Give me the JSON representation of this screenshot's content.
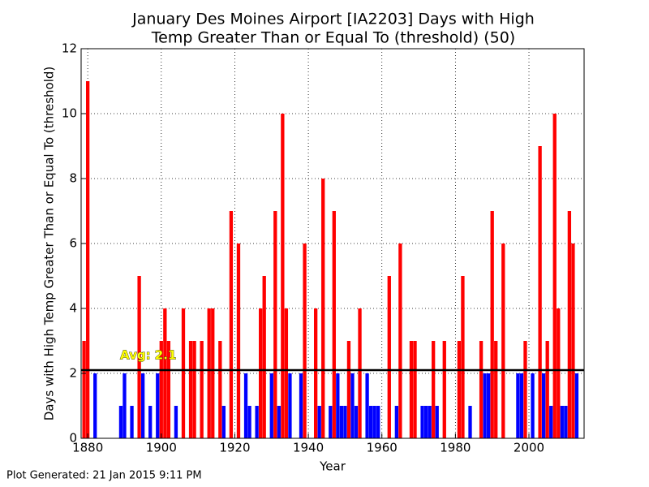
{
  "chart_data": {
    "type": "bar",
    "title_lines": [
      "January Des Moines Airport [IA2203] Days with High",
      "Temp Greater Than or Equal To (threshold) (50)"
    ],
    "x_label": "Year",
    "y_label": "Days with High Temp Greater Than or Equal To (threshold)",
    "footer": "Plot Generated: 21 Jan 2015 9:11 PM",
    "avg": 2.1,
    "avg_label": "Avg: 2.1",
    "above_color": "#ff0000",
    "below_color": "#0000ff",
    "x": [
      1879,
      1880,
      1881,
      1882,
      1883,
      1884,
      1885,
      1886,
      1887,
      1888,
      1889,
      1890,
      1891,
      1892,
      1893,
      1894,
      1895,
      1896,
      1897,
      1898,
      1899,
      1900,
      1901,
      1902,
      1903,
      1904,
      1905,
      1906,
      1907,
      1908,
      1909,
      1910,
      1911,
      1912,
      1913,
      1914,
      1915,
      1916,
      1917,
      1918,
      1919,
      1920,
      1921,
      1922,
      1923,
      1924,
      1925,
      1926,
      1927,
      1928,
      1929,
      1930,
      1931,
      1932,
      1933,
      1934,
      1935,
      1936,
      1937,
      1938,
      1939,
      1940,
      1941,
      1942,
      1943,
      1944,
      1945,
      1946,
      1947,
      1948,
      1949,
      1950,
      1951,
      1952,
      1953,
      1954,
      1955,
      1956,
      1957,
      1958,
      1959,
      1960,
      1961,
      1962,
      1963,
      1964,
      1965,
      1966,
      1967,
      1968,
      1969,
      1970,
      1971,
      1972,
      1973,
      1974,
      1975,
      1976,
      1977,
      1978,
      1979,
      1980,
      1981,
      1982,
      1983,
      1984,
      1985,
      1986,
      1987,
      1988,
      1989,
      1990,
      1991,
      1992,
      1993,
      1994,
      1995,
      1996,
      1997,
      1998,
      1999,
      2000,
      2001,
      2002,
      2003,
      2004,
      2005,
      2006,
      2007,
      2008,
      2009,
      2010,
      2011,
      2012,
      2013
    ],
    "values": [
      3,
      11,
      0,
      2,
      0,
      0,
      0,
      0,
      0,
      0,
      1,
      2,
      0,
      1,
      0,
      5,
      2,
      0,
      1,
      0,
      2,
      3,
      4,
      3,
      0,
      1,
      0,
      4,
      0,
      3,
      3,
      0,
      3,
      0,
      4,
      4,
      0,
      3,
      1,
      0,
      7,
      0,
      6,
      0,
      2,
      1,
      0,
      1,
      4,
      5,
      0,
      2,
      7,
      1,
      10,
      4,
      2,
      0,
      0,
      2,
      6,
      0,
      0,
      4,
      1,
      8,
      0,
      1,
      7,
      2,
      1,
      1,
      3,
      2,
      1,
      4,
      0,
      2,
      1,
      1,
      1,
      0,
      0,
      5,
      0,
      1,
      6,
      0,
      0,
      3,
      3,
      0,
      1,
      1,
      1,
      3,
      1,
      0,
      3,
      0,
      0,
      0,
      3,
      5,
      0,
      1,
      0,
      0,
      3,
      2,
      2,
      7,
      3,
      0,
      6,
      0,
      0,
      0,
      2,
      2,
      3,
      0,
      2,
      0,
      9,
      2,
      3,
      1,
      10,
      4,
      1,
      1,
      7,
      6,
      2
    ],
    "xlim": [
      1878.2,
      2015
    ],
    "xticks": [
      1880,
      1900,
      1920,
      1940,
      1960,
      1980,
      2000
    ],
    "ylim": [
      0,
      12
    ],
    "yticks": [
      0,
      2,
      4,
      6,
      8,
      10,
      12
    ],
    "grid": true
  }
}
